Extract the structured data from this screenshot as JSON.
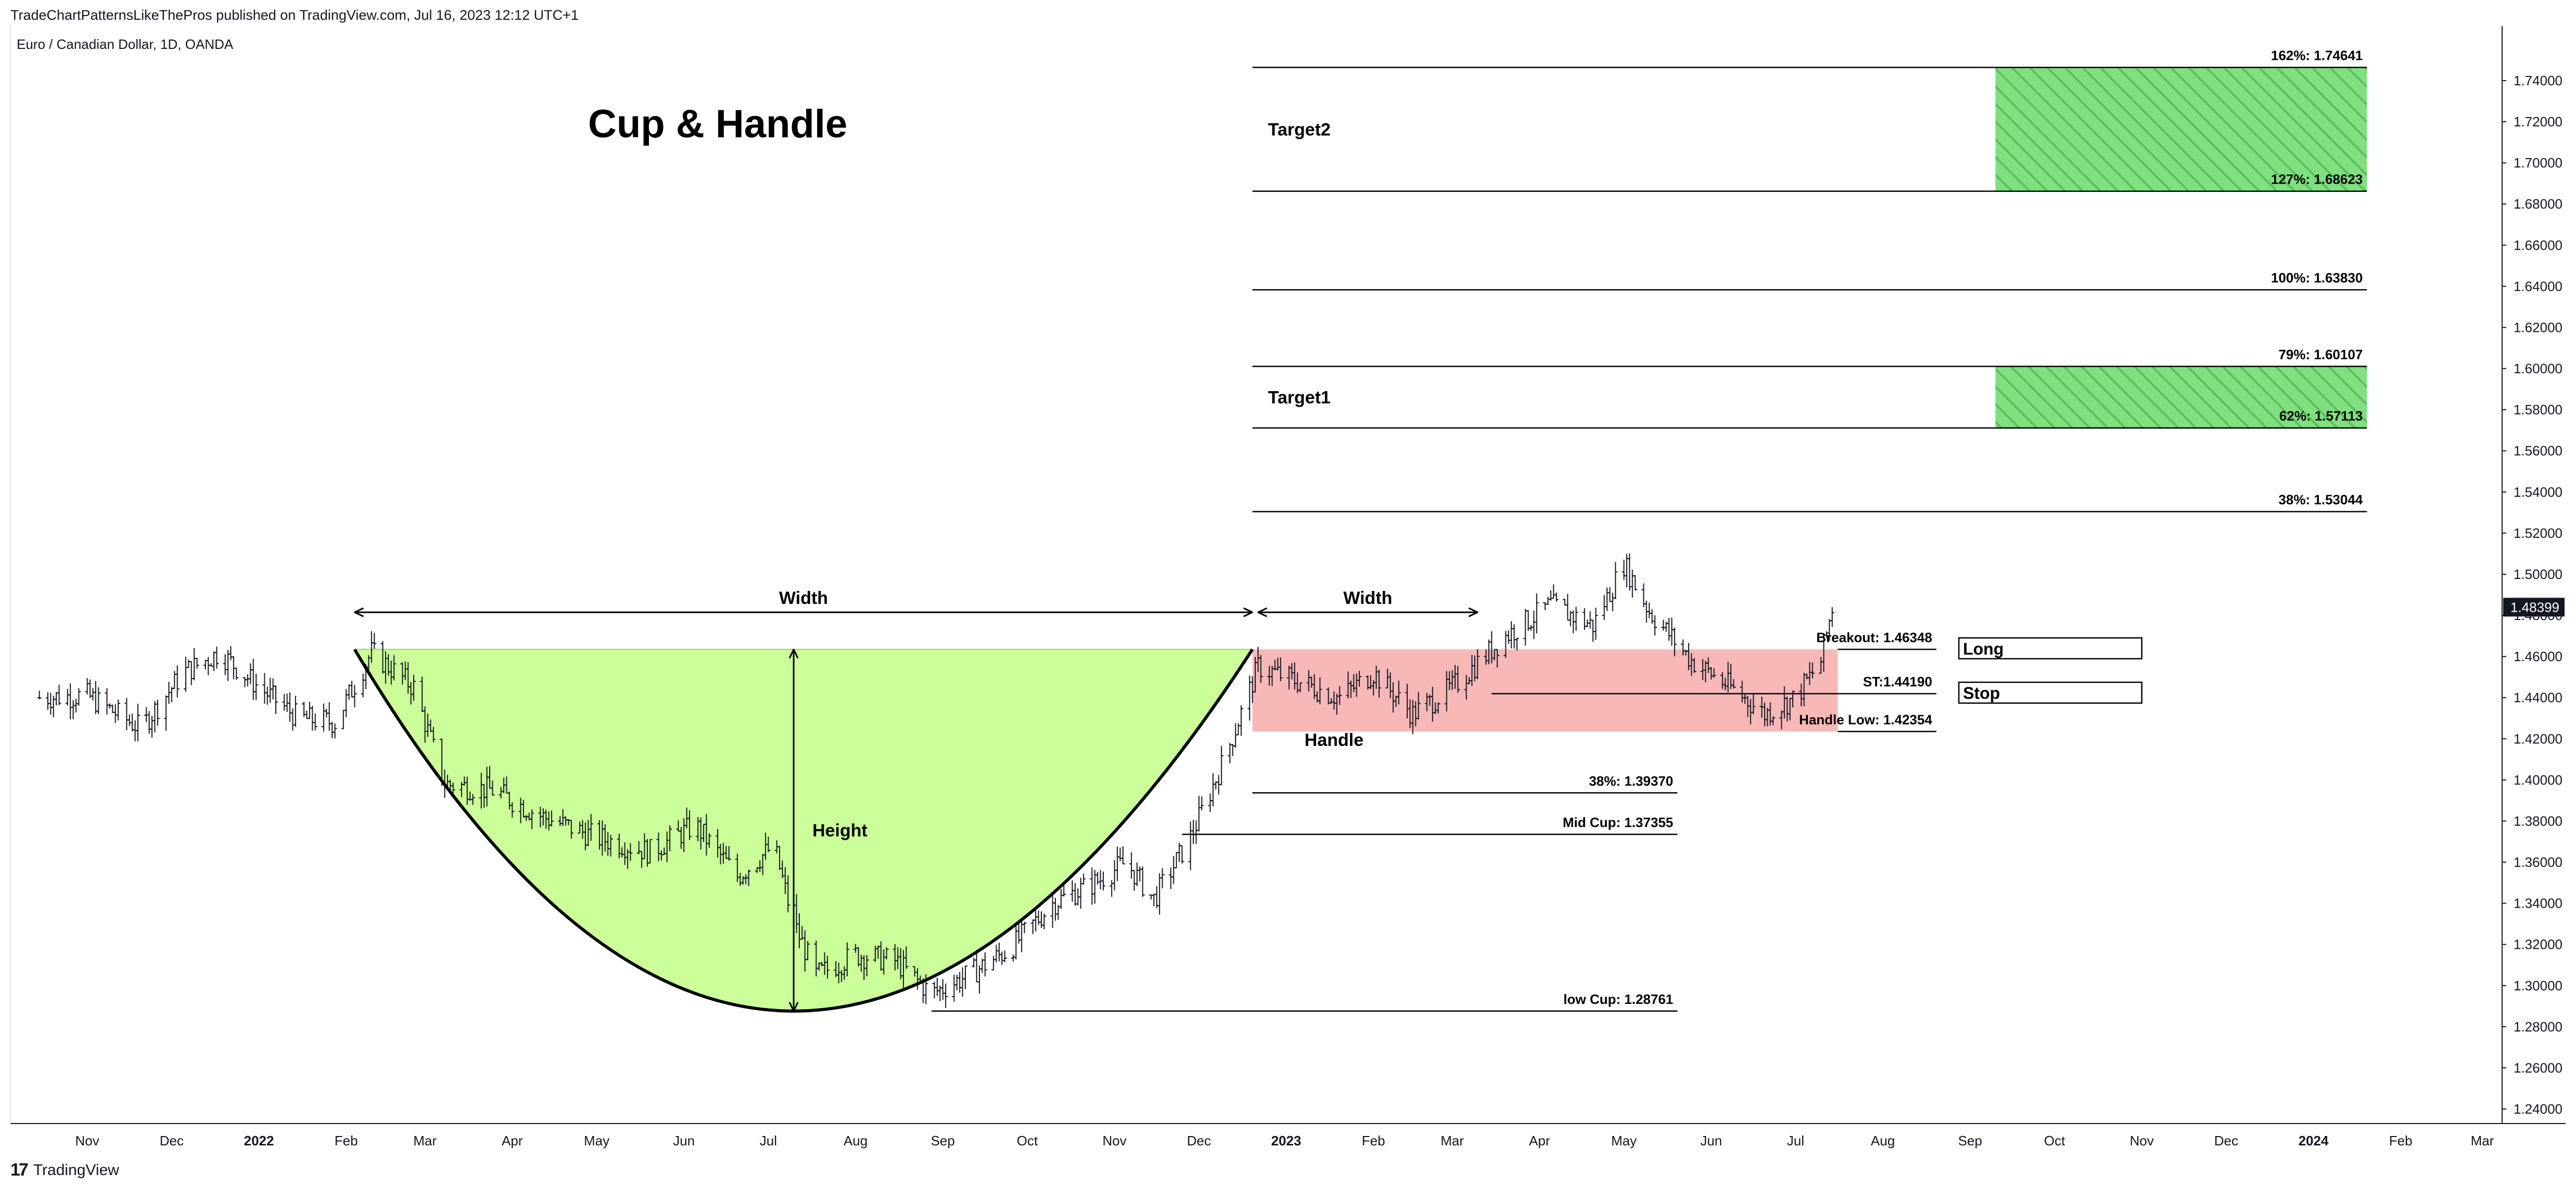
{
  "header": {
    "published": "TradeChartPatternsLikeThePros published on TradingView.com, Jul 16, 2023 12:12 UTC+1",
    "symbol": "Euro / Canadian Dollar, 1D, OANDA"
  },
  "footer": {
    "logo_text": "TradingView",
    "logo_icon": "tradingview-logo-icon"
  },
  "colors": {
    "cup_fill": "#ccff99",
    "handle_fill": "#f8b4b4",
    "target_fill": "#7fe07f",
    "last_price_bg": "#131722",
    "candles": "#131722"
  },
  "chart_data": {
    "type": "line",
    "title": "Cup & Handle",
    "xlabel": "",
    "ylabel": "",
    "ylim": [
      1.225,
      1.77
    ],
    "grid": false,
    "x_ticks": [
      {
        "label": "Nov",
        "date": "2021-11-01",
        "bold": false
      },
      {
        "label": "Dec",
        "date": "2021-12-01",
        "bold": false
      },
      {
        "label": "2022",
        "date": "2022-01-01",
        "bold": true
      },
      {
        "label": "Feb",
        "date": "2022-02-01",
        "bold": false
      },
      {
        "label": "Mar",
        "date": "2022-03-01",
        "bold": false
      },
      {
        "label": "Apr",
        "date": "2022-04-01",
        "bold": false
      },
      {
        "label": "May",
        "date": "2022-05-01",
        "bold": false
      },
      {
        "label": "Jun",
        "date": "2022-06-01",
        "bold": false
      },
      {
        "label": "Jul",
        "date": "2022-07-01",
        "bold": false
      },
      {
        "label": "Aug",
        "date": "2022-08-01",
        "bold": false
      },
      {
        "label": "Sep",
        "date": "2022-09-01",
        "bold": false
      },
      {
        "label": "Oct",
        "date": "2022-10-01",
        "bold": false
      },
      {
        "label": "Nov",
        "date": "2022-11-01",
        "bold": false
      },
      {
        "label": "Dec",
        "date": "2022-12-01",
        "bold": false
      },
      {
        "label": "2023",
        "date": "2023-01-01",
        "bold": true
      },
      {
        "label": "Feb",
        "date": "2023-02-01",
        "bold": false
      },
      {
        "label": "Mar",
        "date": "2023-03-01",
        "bold": false
      },
      {
        "label": "Apr",
        "date": "2023-04-01",
        "bold": false
      },
      {
        "label": "May",
        "date": "2023-05-01",
        "bold": false
      },
      {
        "label": "Jun",
        "date": "2023-06-01",
        "bold": false
      },
      {
        "label": "Jul",
        "date": "2023-07-01",
        "bold": false
      },
      {
        "label": "Aug",
        "date": "2023-08-01",
        "bold": false
      },
      {
        "label": "Sep",
        "date": "2023-09-01",
        "bold": false
      },
      {
        "label": "Oct",
        "date": "2023-10-01",
        "bold": false
      },
      {
        "label": "Nov",
        "date": "2023-11-01",
        "bold": false
      },
      {
        "label": "Dec",
        "date": "2023-12-01",
        "bold": false
      },
      {
        "label": "2024",
        "date": "2024-01-01",
        "bold": true
      },
      {
        "label": "Feb",
        "date": "2024-02-01",
        "bold": false
      },
      {
        "label": "Mar",
        "date": "2024-03-01",
        "bold": false
      }
    ],
    "y_ticks": [
      "1.24000",
      "1.26000",
      "1.28000",
      "1.30000",
      "1.32000",
      "1.34000",
      "1.36000",
      "1.38000",
      "1.40000",
      "1.42000",
      "1.44000",
      "1.46000",
      "1.48000",
      "1.50000",
      "1.52000",
      "1.54000",
      "1.56000",
      "1.58000",
      "1.60000",
      "1.62000",
      "1.64000",
      "1.66000",
      "1.68000",
      "1.70000",
      "1.72000",
      "1.74000"
    ],
    "last_price": {
      "label": "1.48399",
      "value": 1.48399
    },
    "price_series": {
      "name": "",
      "style": "ohlc-bars",
      "points": [
        {
          "x": "2021-10-15",
          "y": 1.44
        },
        {
          "x": "2021-11-01",
          "y": 1.441
        },
        {
          "x": "2021-11-20",
          "y": 1.425
        },
        {
          "x": "2021-12-05",
          "y": 1.452
        },
        {
          "x": "2021-12-18",
          "y": 1.462
        },
        {
          "x": "2022-01-01",
          "y": 1.445
        },
        {
          "x": "2022-01-15",
          "y": 1.43
        },
        {
          "x": "2022-01-28",
          "y": 1.428
        },
        {
          "x": "2022-02-10",
          "y": 1.462
        },
        {
          "x": "2022-02-25",
          "y": 1.445
        },
        {
          "x": "2022-03-08",
          "y": 1.398
        },
        {
          "x": "2022-03-25",
          "y": 1.395
        },
        {
          "x": "2022-04-12",
          "y": 1.382
        },
        {
          "x": "2022-05-01",
          "y": 1.372
        },
        {
          "x": "2022-05-20",
          "y": 1.365
        },
        {
          "x": "2022-06-05",
          "y": 1.378
        },
        {
          "x": "2022-06-20",
          "y": 1.353
        },
        {
          "x": "2022-07-03",
          "y": 1.368
        },
        {
          "x": "2022-07-10",
          "y": 1.33
        },
        {
          "x": "2022-07-18",
          "y": 1.305
        },
        {
          "x": "2022-08-01",
          "y": 1.315
        },
        {
          "x": "2022-08-15",
          "y": 1.312
        },
        {
          "x": "2022-08-28",
          "y": 1.296
        },
        {
          "x": "2022-09-10",
          "y": 1.305
        },
        {
          "x": "2022-09-25",
          "y": 1.318
        },
        {
          "x": "2022-10-10",
          "y": 1.34
        },
        {
          "x": "2022-10-25",
          "y": 1.35
        },
        {
          "x": "2022-11-05",
          "y": 1.36
        },
        {
          "x": "2022-11-15",
          "y": 1.342
        },
        {
          "x": "2022-11-28",
          "y": 1.372
        },
        {
          "x": "2022-12-10",
          "y": 1.41
        },
        {
          "x": "2022-12-22",
          "y": 1.455
        },
        {
          "x": "2023-01-05",
          "y": 1.448
        },
        {
          "x": "2023-01-20",
          "y": 1.44
        },
        {
          "x": "2023-02-01",
          "y": 1.452
        },
        {
          "x": "2023-02-15",
          "y": 1.432
        },
        {
          "x": "2023-03-01",
          "y": 1.445
        },
        {
          "x": "2023-03-20",
          "y": 1.47
        },
        {
          "x": "2023-04-05",
          "y": 1.485
        },
        {
          "x": "2023-04-20",
          "y": 1.475
        },
        {
          "x": "2023-05-01",
          "y": 1.505
        },
        {
          "x": "2023-05-10",
          "y": 1.482
        },
        {
          "x": "2023-05-25",
          "y": 1.458
        },
        {
          "x": "2023-06-08",
          "y": 1.445
        },
        {
          "x": "2023-06-20",
          "y": 1.432
        },
        {
          "x": "2023-07-01",
          "y": 1.44
        },
        {
          "x": "2023-07-10",
          "y": 1.458
        },
        {
          "x": "2023-07-14",
          "y": 1.484
        }
      ]
    },
    "cup": {
      "left": {
        "x": "2022-02-04",
        "y": 1.46348
      },
      "bottom": {
        "x": "2022-07-10",
        "y": 1.28761
      },
      "right": {
        "x": "2022-12-20",
        "y": 1.46348
      }
    },
    "handle_zone": {
      "x_start": "2022-12-20",
      "x_end": "2023-07-16",
      "y_top": 1.46348,
      "y_bottom": 1.42354
    },
    "annotations": [
      {
        "text": "Width",
        "x_start": "2022-02-04",
        "x_end": "2022-12-20",
        "y": 1.4815
      },
      {
        "text": "Width",
        "x_start": "2022-12-22",
        "x_end": "2023-03-10",
        "y": 1.4815
      },
      {
        "text": "Height",
        "x": "2022-07-10",
        "y_top": 1.46348,
        "y_bottom": 1.28761
      },
      {
        "text": "Handle",
        "x": "2023-01-18",
        "y": 1.4165
      }
    ],
    "levels": [
      {
        "text": "162%: 1.74641",
        "value": 1.74641,
        "x_start": "2022-12-20",
        "x_end": "2024-01-20"
      },
      {
        "text": "127%: 1.68623",
        "value": 1.68623,
        "x_start": "2022-12-20",
        "x_end": "2024-01-20"
      },
      {
        "text": "100%: 1.63830",
        "value": 1.6383,
        "x_start": "2022-12-20",
        "x_end": "2024-01-20"
      },
      {
        "text": "79%: 1.60107",
        "value": 1.60107,
        "x_start": "2022-12-20",
        "x_end": "2024-01-20"
      },
      {
        "text": "62%: 1.57113",
        "value": 1.57113,
        "x_start": "2022-12-20",
        "x_end": "2024-01-20"
      },
      {
        "text": "38%: 1.53044",
        "value": 1.53044,
        "x_start": "2022-12-20",
        "x_end": "2024-01-20"
      },
      {
        "text": "Breakout: 1.46348",
        "value": 1.46348,
        "x_start": "2023-07-16",
        "x_end": "2023-08-20"
      },
      {
        "text": "ST:1.44190",
        "value": 1.4419,
        "x_start": "2023-03-15",
        "x_end": "2023-08-20"
      },
      {
        "text": "Handle Low: 1.42354",
        "value": 1.42354,
        "x_start": "2023-07-16",
        "x_end": "2023-08-20"
      },
      {
        "text": "38%: 1.39370",
        "value": 1.3937,
        "x_start": "2022-12-20",
        "x_end": "2023-05-20"
      },
      {
        "text": "Mid Cup: 1.37355",
        "value": 1.37355,
        "x_start": "2022-11-25",
        "x_end": "2023-05-20"
      },
      {
        "text": "low Cup: 1.28761",
        "value": 1.28761,
        "x_start": "2022-08-28",
        "x_end": "2023-05-20"
      }
    ],
    "target_zones": [
      {
        "text": "Target2",
        "y_top": 1.74641,
        "y_bottom": 1.68623,
        "x_start": "2023-09-10",
        "x_end": "2024-01-20"
      },
      {
        "text": "Target1",
        "y_top": 1.60107,
        "y_bottom": 1.57113,
        "x_start": "2023-09-10",
        "x_end": "2024-01-20"
      }
    ],
    "order_boxes": [
      {
        "text": "Long",
        "value": 1.46348
      },
      {
        "text": "Stop",
        "value": 1.4419
      }
    ]
  }
}
